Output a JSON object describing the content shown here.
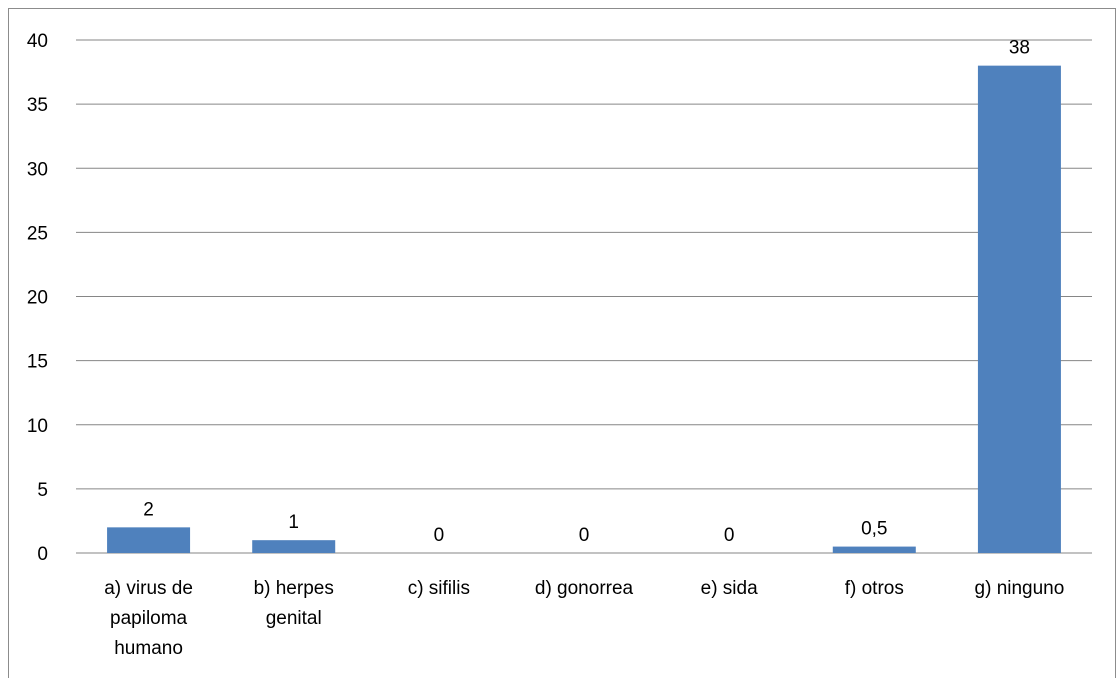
{
  "chart_data": {
    "type": "bar",
    "categories": [
      [
        "a) virus de",
        "papiloma",
        "humano"
      ],
      [
        "b) herpes",
        "genital"
      ],
      [
        "c) sifilis"
      ],
      [
        "d) gonorrea"
      ],
      [
        "e) sida"
      ],
      [
        "f) otros"
      ],
      [
        "g) ninguno"
      ]
    ],
    "values": [
      2,
      1,
      0,
      0,
      0,
      0.5,
      38
    ],
    "data_labels": [
      "2",
      "1",
      "0",
      "0",
      "0",
      "0,5",
      "38"
    ],
    "yticks": [
      "0",
      "5",
      "10",
      "15",
      "20",
      "25",
      "30",
      "35",
      "40"
    ],
    "ylim": [
      0,
      40
    ],
    "grid": true,
    "bar_color": "#4f81bd",
    "grid_color": "#868686"
  }
}
